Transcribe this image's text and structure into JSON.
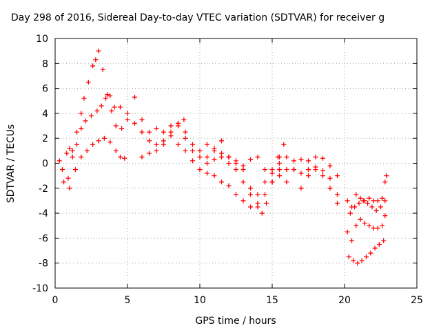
{
  "chart_data": {
    "type": "scatter",
    "title": "Day 298 of 2016, Sidereal Day-to-day VTEC variation (SDTVAR) for receiver g",
    "xlabel": "GPS time / hours",
    "ylabel": "SDTVAR / TECUs",
    "xlim": [
      0,
      25
    ],
    "ylim": [
      -10,
      10
    ],
    "xticks": [
      0,
      5,
      10,
      15,
      20,
      25
    ],
    "yticks": [
      -10,
      -8,
      -6,
      -4,
      -2,
      0,
      2,
      4,
      6,
      8,
      10
    ],
    "grid": true,
    "marker": "+",
    "series_color": "#ff0000",
    "series": [
      {
        "x": [
          0.3,
          0.5,
          0.8,
          1.0,
          1.2,
          1.5,
          1.8,
          2.0,
          2.3,
          2.6,
          2.8
        ],
        "y": [
          0.2,
          -0.5,
          0.8,
          1.2,
          1.0,
          2.5,
          4.0,
          5.2,
          6.5,
          7.8,
          8.3
        ]
      },
      {
        "x": [
          0.6,
          0.9,
          1.2,
          1.5,
          1.8,
          2.1,
          2.5,
          2.9,
          3.2,
          3.5,
          3.8,
          4.1
        ],
        "y": [
          -1.5,
          -1.2,
          0.5,
          1.5,
          2.8,
          3.4,
          3.8,
          4.2,
          4.6,
          5.2,
          5.4,
          4.5
        ]
      },
      {
        "x": [
          3.0,
          3.3,
          3.6,
          3.9,
          4.2,
          4.6,
          5.0,
          5.5,
          6.0,
          6.5,
          7.0,
          7.5,
          8.0,
          8.5,
          8.9
        ],
        "y": [
          9.0,
          7.5,
          5.5,
          4.2,
          3.0,
          2.8,
          3.5,
          3.2,
          2.5,
          1.8,
          1.5,
          1.8,
          2.5,
          3.2,
          3.5
        ]
      },
      {
        "x": [
          1.0,
          1.4,
          1.8,
          2.2,
          2.6,
          3.0,
          3.4,
          3.8,
          4.2,
          4.5,
          4.8
        ],
        "y": [
          -2.0,
          -0.5,
          0.5,
          1.0,
          1.5,
          1.8,
          2.0,
          1.7,
          1.0,
          0.5,
          0.4
        ]
      },
      {
        "x": [
          4.5,
          5.0,
          5.5,
          6.0,
          6.5,
          7.0,
          7.5,
          8.0,
          8.5,
          9.0,
          9.5,
          10.0,
          10.5,
          11.0,
          11.5,
          12.0
        ],
        "y": [
          4.5,
          4.0,
          5.3,
          3.5,
          2.5,
          2.8,
          2.5,
          3.0,
          3.2,
          2.5,
          1.5,
          1.0,
          0.5,
          1.0,
          1.8,
          0.5
        ]
      },
      {
        "x": [
          6.0,
          6.5,
          7.0,
          7.5,
          8.0,
          8.5,
          9.0,
          9.5,
          10.0,
          10.5,
          11.0,
          11.5,
          12.0,
          12.5,
          13.0
        ],
        "y": [
          0.5,
          0.8,
          1.0,
          1.5,
          2.2,
          3.0,
          2.0,
          1.0,
          0.5,
          0.0,
          0.3,
          0.8,
          0.5,
          0.0,
          -0.5
        ]
      },
      {
        "x": [
          8.5,
          9.0,
          9.5,
          10.0,
          10.5,
          11.0,
          11.5,
          12.0,
          12.5,
          13.0,
          13.5,
          14.0,
          14.5,
          15.0,
          15.5
        ],
        "y": [
          1.5,
          1.0,
          0.2,
          -0.5,
          -0.8,
          -1.0,
          -1.5,
          -1.8,
          -2.5,
          -3.0,
          -3.5,
          -3.2,
          -2.5,
          -1.5,
          -0.5
        ]
      },
      {
        "x": [
          10.5,
          11.0,
          11.5,
          12.0,
          12.5,
          13.0,
          13.5,
          14.0,
          14.3,
          14.6,
          15.0,
          15.4,
          15.8
        ],
        "y": [
          1.5,
          1.2,
          0.5,
          0.0,
          -0.5,
          -1.5,
          -2.5,
          -3.5,
          -4.0,
          -3.2,
          -1.5,
          0.5,
          1.5
        ]
      },
      {
        "x": [
          12.0,
          12.5,
          13.0,
          13.5,
          14.0,
          14.5,
          15.0,
          15.5,
          16.0,
          16.5,
          17.0,
          17.5,
          18.0,
          18.5,
          19.0,
          19.5
        ],
        "y": [
          0.5,
          0.2,
          -0.2,
          0.3,
          0.5,
          -0.5,
          -1.5,
          0.0,
          0.5,
          -0.5,
          0.3,
          0.2,
          0.5,
          0.4,
          -0.2,
          -1.0
        ]
      },
      {
        "x": [
          13.5,
          14.0,
          14.5,
          15.0,
          15.5,
          16.0,
          16.5,
          17.0,
          17.5,
          18.0,
          18.5,
          19.0,
          19.5
        ],
        "y": [
          -2.0,
          -2.5,
          -1.5,
          -0.8,
          -1.0,
          -1.5,
          -0.5,
          -2.0,
          -1.0,
          -0.5,
          -1.0,
          -2.0,
          -3.2
        ]
      },
      {
        "x": [
          15.0,
          15.5,
          16.0,
          16.5,
          17.0,
          17.5,
          18.0,
          18.5,
          19.0,
          19.5
        ],
        "y": [
          -0.5,
          0.5,
          -0.5,
          0.2,
          -0.8,
          -0.5,
          -0.3,
          -0.6,
          -1.2,
          -2.5
        ]
      },
      {
        "x": [
          20.2,
          20.5,
          20.8,
          21.1,
          21.4,
          21.7,
          22.0,
          22.3,
          22.6,
          22.8,
          22.9
        ],
        "y": [
          -3.0,
          -3.5,
          -2.5,
          -2.8,
          -3.0,
          -2.8,
          -3.0,
          -3.0,
          -2.8,
          -1.5,
          -1.0
        ]
      },
      {
        "x": [
          20.2,
          20.5,
          20.8,
          21.1,
          21.4,
          21.7,
          22.0,
          22.3,
          22.6,
          22.8
        ],
        "y": [
          -5.5,
          -6.2,
          -5.0,
          -4.5,
          -4.8,
          -5.0,
          -5.2,
          -5.2,
          -5.0,
          -4.2
        ]
      },
      {
        "x": [
          20.3,
          20.6,
          20.9,
          21.2,
          21.5,
          21.8,
          22.1,
          22.4,
          22.7
        ],
        "y": [
          -7.5,
          -7.8,
          -8.0,
          -7.8,
          -7.5,
          -7.2,
          -6.8,
          -6.5,
          -6.2
        ]
      },
      {
        "x": [
          20.4,
          20.7,
          21.0,
          21.3,
          21.6,
          21.9,
          22.2,
          22.5,
          22.8
        ],
        "y": [
          -4.0,
          -3.5,
          -3.2,
          -3.0,
          -3.2,
          -3.5,
          -3.8,
          -3.5,
          -3.0
        ]
      }
    ]
  }
}
